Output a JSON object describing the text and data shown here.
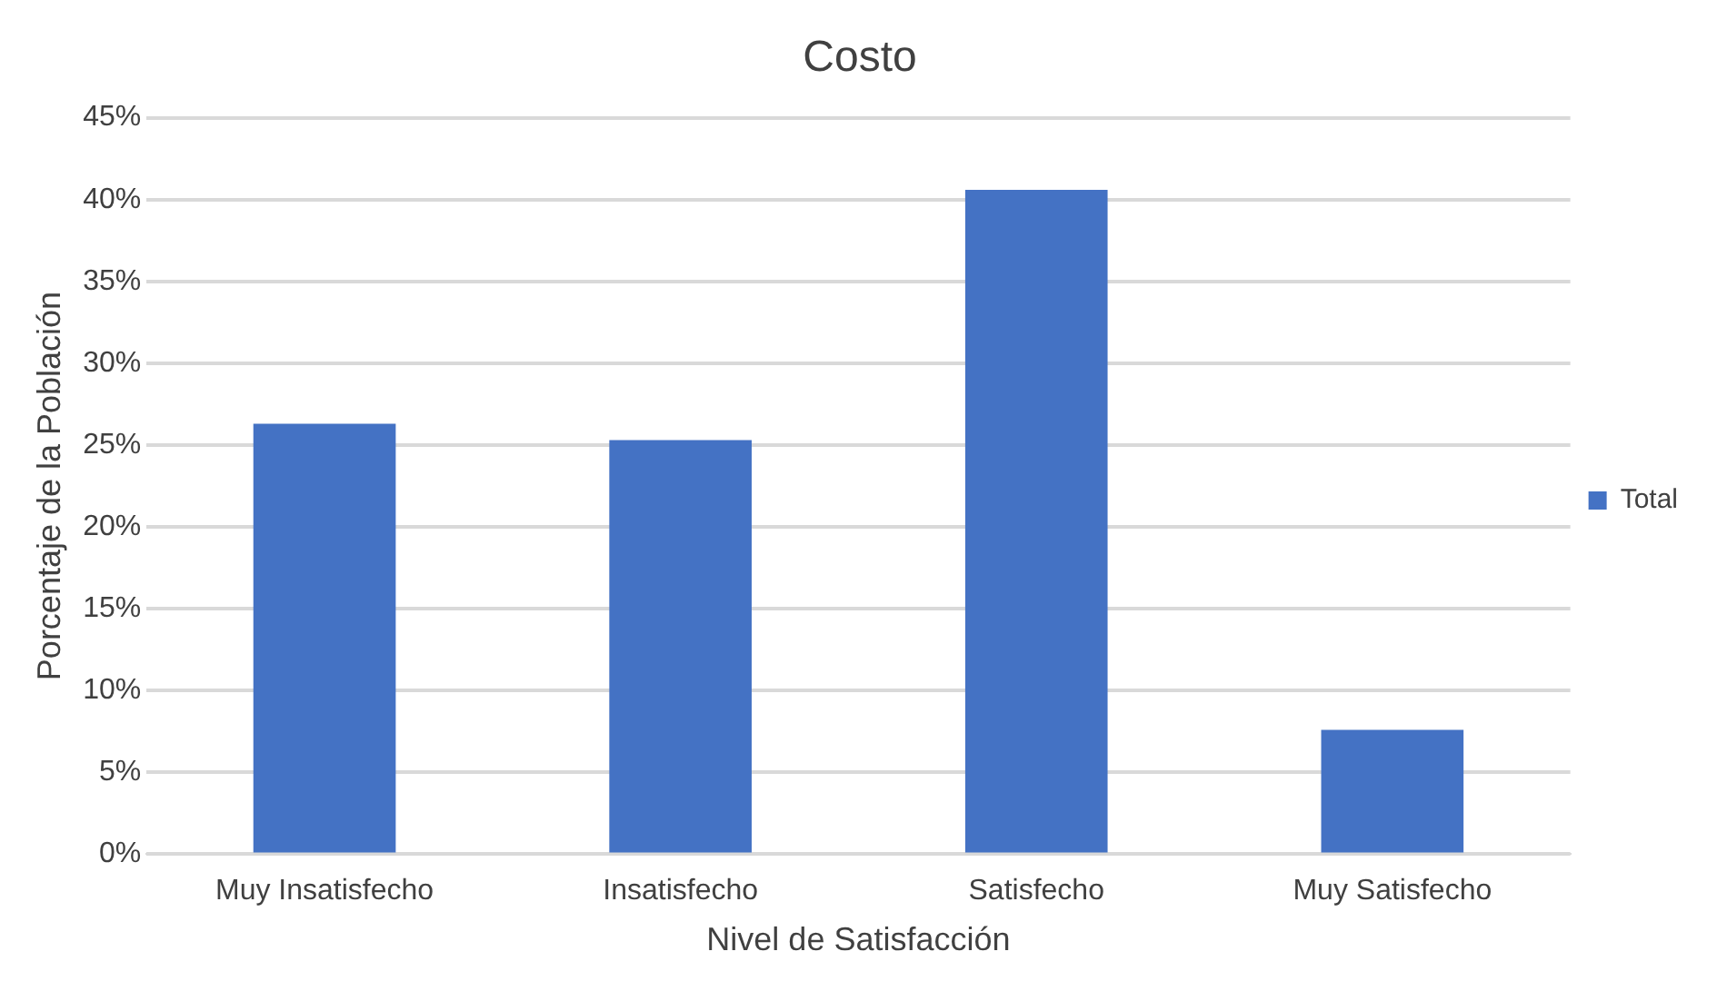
{
  "chart_data": {
    "type": "bar",
    "title": "Costo",
    "xlabel": "Nivel de Satisfacción",
    "ylabel": "Porcentaje de la Población",
    "categories": [
      "Muy Insatisfecho",
      "Insatisfecho",
      "Satisfecho",
      "Muy Satisfecho"
    ],
    "series": [
      {
        "name": "Total",
        "color": "#4472c4",
        "values": [
          26.3,
          25.3,
          40.6,
          7.6
        ]
      }
    ],
    "ylim": [
      0,
      45
    ],
    "yticks": [
      {
        "value": 0,
        "label": "0%"
      },
      {
        "value": 5,
        "label": "5%"
      },
      {
        "value": 10,
        "label": "10%"
      },
      {
        "value": 15,
        "label": "15%"
      },
      {
        "value": 20,
        "label": "20%"
      },
      {
        "value": 25,
        "label": "25%"
      },
      {
        "value": 30,
        "label": "30%"
      },
      {
        "value": 35,
        "label": "35%"
      },
      {
        "value": 40,
        "label": "40%"
      },
      {
        "value": 45,
        "label": "45%"
      }
    ],
    "grid": "y",
    "legend": "right"
  }
}
